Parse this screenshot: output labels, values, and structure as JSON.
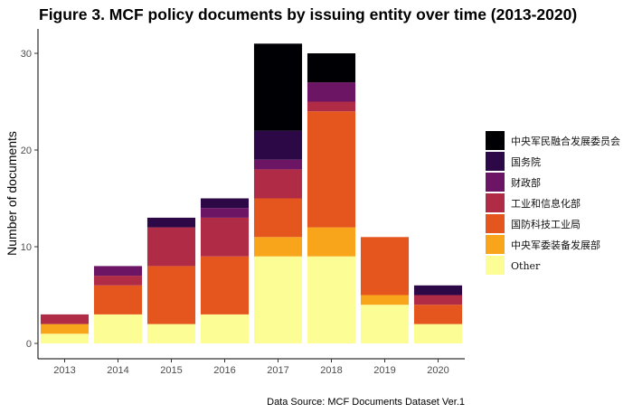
{
  "chart_data": {
    "type": "bar",
    "stacked": true,
    "title": "Figure 3. MCF policy documents by issuing entity over time (2013-2020)",
    "xlabel": "",
    "ylabel": "Number of documents",
    "caption": "Data Source: MCF Documents Dataset Ver.1",
    "categories": [
      "2013",
      "2014",
      "2015",
      "2016",
      "2017",
      "2018",
      "2019",
      "2020"
    ],
    "ylim": [
      0,
      32
    ],
    "yticks": [
      0,
      10,
      20,
      30
    ],
    "legend_position": "right",
    "grid": false,
    "series": [
      {
        "name": "Other",
        "color": "#FCFD95",
        "values": [
          1,
          3,
          2,
          3,
          9,
          9,
          4,
          2
        ]
      },
      {
        "name": "中央军委装备发展部",
        "color": "#F8A51C",
        "values": [
          1,
          0,
          0,
          0,
          2,
          3,
          1,
          0
        ]
      },
      {
        "name": "国防科技工业局",
        "color": "#E5561F",
        "values": [
          0,
          3,
          6,
          6,
          4,
          12,
          6,
          2
        ]
      },
      {
        "name": "工业和信息化部",
        "color": "#B02B45",
        "values": [
          1,
          1,
          4,
          4,
          3,
          1,
          0,
          1
        ]
      },
      {
        "name": "财政部",
        "color": "#6C1565",
        "values": [
          0,
          1,
          0,
          1,
          1,
          2,
          0,
          0
        ]
      },
      {
        "name": "国务院",
        "color": "#2D0846",
        "values": [
          0,
          0,
          1,
          1,
          3,
          0,
          0,
          1
        ]
      },
      {
        "name": "中央军民融合发展委员会",
        "color": "#000004",
        "values": [
          0,
          0,
          0,
          0,
          9,
          3,
          0,
          0
        ]
      }
    ],
    "legend_order": [
      "中央军民融合发展委员会",
      "国务院",
      "财政部",
      "工业和信息化部",
      "国防科技工业局",
      "中央军委装备发展部",
      "Other"
    ]
  }
}
